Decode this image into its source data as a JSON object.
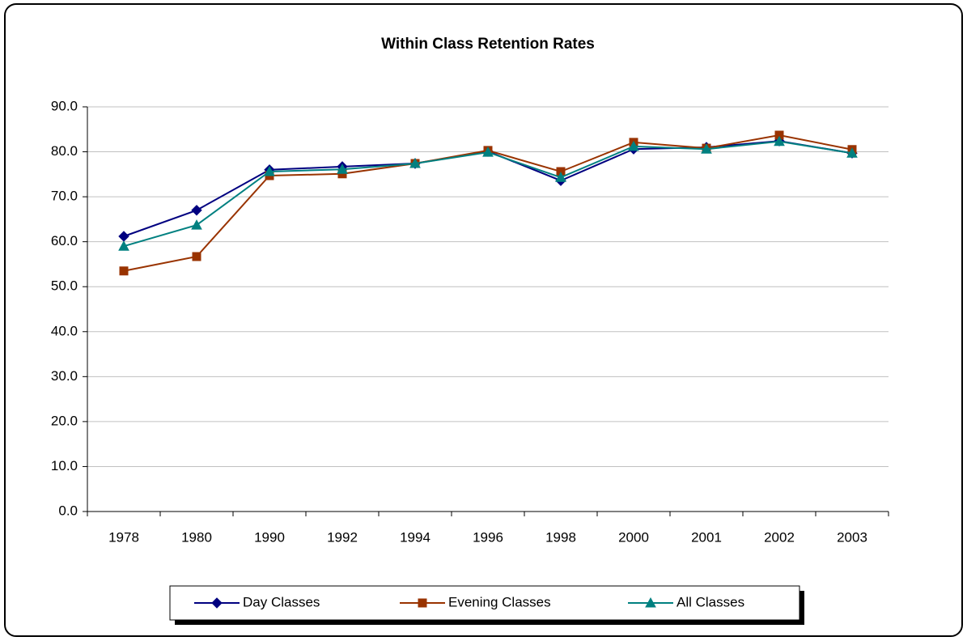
{
  "chart_data": {
    "type": "line",
    "title": "Within Class Retention Rates",
    "categories": [
      "1978",
      "1980",
      "1990",
      "1992",
      "1994",
      "1996",
      "1998",
      "2000",
      "2001",
      "2002",
      "2003"
    ],
    "series": [
      {
        "name": "Day Classes",
        "color": "#000080",
        "marker": "diamond",
        "values": [
          61.2,
          67.0,
          76.0,
          76.7,
          77.4,
          80.1,
          73.6,
          80.6,
          81.0,
          82.4,
          79.7
        ]
      },
      {
        "name": "Evening Classes",
        "color": "#993300",
        "marker": "square",
        "values": [
          53.5,
          56.7,
          74.7,
          75.1,
          77.4,
          80.3,
          75.6,
          82.1,
          80.8,
          83.7,
          80.5
        ]
      },
      {
        "name": "All Classes",
        "color": "#008080",
        "marker": "triangle",
        "values": [
          59.0,
          63.7,
          75.6,
          76.1,
          77.4,
          79.9,
          74.3,
          81.2,
          80.6,
          82.3,
          79.7
        ]
      }
    ],
    "ylim": [
      0,
      90
    ],
    "yticks": [
      {
        "value": 0,
        "label": "0.0"
      },
      {
        "value": 10,
        "label": "10.0"
      },
      {
        "value": 20,
        "label": "20.0"
      },
      {
        "value": 30,
        "label": "30.0"
      },
      {
        "value": 40,
        "label": "40.0"
      },
      {
        "value": 50,
        "label": "50.0"
      },
      {
        "value": 60,
        "label": "60.0"
      },
      {
        "value": 70,
        "label": "70.0"
      },
      {
        "value": 80,
        "label": "80.0"
      },
      {
        "value": 90,
        "label": "90.0"
      }
    ],
    "grid": true,
    "legend": "bottom"
  }
}
